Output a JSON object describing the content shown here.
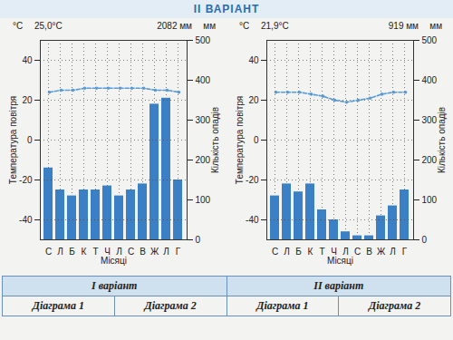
{
  "heading": "II ВАРІАНТ",
  "chart_data": [
    {
      "type": "bar",
      "annotations": [
        "25,0°C",
        "2082 мм"
      ],
      "yunit": "°C",
      "y2unit": "мм",
      "ylabel": "Температура повітря",
      "y2label": "Кількість опадів",
      "xlabel": "Місяці",
      "categories": [
        "С",
        "Л",
        "Б",
        "К",
        "Т",
        "Ч",
        "Л",
        "С",
        "В",
        "Ж",
        "Л",
        "Г"
      ],
      "series": [
        {
          "type": "bar",
          "axis": "y2",
          "color": "#3b7fc4",
          "values": [
            180,
            125,
            110,
            125,
            125,
            135,
            110,
            125,
            140,
            340,
            355,
            150
          ]
        },
        {
          "type": "line",
          "color": "#5b9bd5",
          "marker": "dot",
          "line_style": "dashed",
          "values": [
            24,
            25,
            25,
            26,
            26,
            26,
            26,
            26,
            26,
            25,
            25,
            24
          ]
        }
      ],
      "ylim": [
        -50,
        50
      ],
      "yticks": [
        -40,
        -20,
        0,
        20,
        40
      ],
      "y2lim": [
        0,
        500
      ],
      "y2ticks": [
        0,
        100,
        200,
        300,
        400,
        500
      ],
      "grid": true
    },
    {
      "type": "bar",
      "annotations": [
        "21,9°C",
        "919 мм"
      ],
      "yunit": "°C",
      "y2unit": "мм",
      "ylabel": "Температура повітря",
      "y2label": "Кількість опадів",
      "xlabel": "Місяці",
      "categories": [
        "С",
        "Л",
        "Б",
        "К",
        "Т",
        "Ч",
        "Л",
        "С",
        "В",
        "Ж",
        "Л",
        "Г"
      ],
      "series": [
        {
          "type": "bar",
          "axis": "y2",
          "color": "#3b7fc4",
          "values": [
            110,
            140,
            120,
            140,
            75,
            50,
            20,
            10,
            10,
            60,
            85,
            125
          ]
        },
        {
          "type": "line",
          "color": "#5b9bd5",
          "marker": "dot",
          "line_style": "dashed",
          "values": [
            24,
            24,
            24,
            23,
            22,
            20,
            19,
            20,
            21,
            23,
            24,
            24
          ]
        }
      ],
      "ylim": [
        -50,
        50
      ],
      "yticks": [
        -40,
        -20,
        0,
        20,
        40
      ],
      "y2lim": [
        0,
        500
      ],
      "y2ticks": [
        0,
        100,
        200,
        300,
        400,
        500
      ],
      "grid": true
    }
  ],
  "table": {
    "header": [
      "I варіант",
      "II варіант"
    ],
    "rows": [
      [
        "Діаграма 1",
        "Діаграма 2",
        "Діаграма 1",
        "Діаграма 2"
      ]
    ]
  }
}
